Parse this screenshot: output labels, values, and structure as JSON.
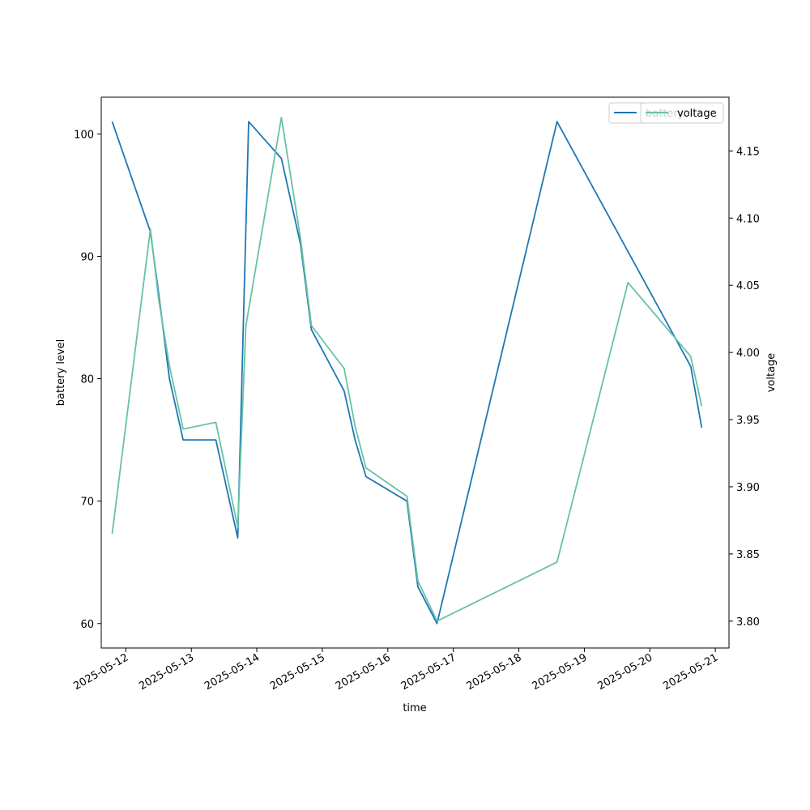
{
  "chart_data": {
    "type": "line",
    "title": "",
    "xlabel": "time",
    "ylabel": "battery level",
    "y2label": "voltage",
    "x_tick_labels": [
      "2025-05-12",
      "2025-05-13",
      "2025-05-14",
      "2025-05-15",
      "2025-05-16",
      "2025-05-17",
      "2025-05-18",
      "2025-05-19",
      "2025-05-20",
      "2025-05-21"
    ],
    "y_ticks": [
      60,
      70,
      80,
      90,
      100
    ],
    "y2_ticks": [
      "3.80",
      "3.85",
      "3.90",
      "3.95",
      "4.00",
      "4.05",
      "4.10",
      "4.15"
    ],
    "ylim": [
      58,
      103
    ],
    "y2lim": [
      3.78,
      4.19
    ],
    "xlim": [
      "2025-05-11 15:00",
      "2025-05-21 05:00"
    ],
    "grid": false,
    "legends": [
      {
        "placement": "top-right",
        "entries": [
          "battery"
        ]
      },
      {
        "placement": "top-right",
        "entries": [
          "voltage"
        ]
      }
    ],
    "series": [
      {
        "name": "battery",
        "axis": "left",
        "color": "#1f77b4",
        "points": [
          [
            "2025-05-11 19:00",
            101
          ],
          [
            "2025-05-12 09:00",
            92
          ],
          [
            "2025-05-12 12:00",
            87
          ],
          [
            "2025-05-12 16:00",
            80
          ],
          [
            "2025-05-12 21:00",
            75
          ],
          [
            "2025-05-13 09:00",
            75
          ],
          [
            "2025-05-13 17:00",
            67
          ],
          [
            "2025-05-13 21:00",
            101
          ],
          [
            "2025-05-14 09:00",
            98
          ],
          [
            "2025-05-14 16:00",
            91
          ],
          [
            "2025-05-14 20:00",
            84
          ],
          [
            "2025-05-15 08:00",
            79
          ],
          [
            "2025-05-15 12:00",
            75
          ],
          [
            "2025-05-15 16:00",
            72
          ],
          [
            "2025-05-16 07:00",
            70
          ],
          [
            "2025-05-16 11:00",
            63
          ],
          [
            "2025-05-16 18:00",
            60
          ],
          [
            "2025-05-18 14:00",
            101
          ],
          [
            "2025-05-20 15:00",
            81
          ],
          [
            "2025-05-20 19:00",
            76
          ]
        ]
      },
      {
        "name": "voltage",
        "axis": "right",
        "color": "#66c2a5",
        "points": [
          [
            "2025-05-11 19:00",
            3.865
          ],
          [
            "2025-05-12 09:00",
            4.092
          ],
          [
            "2025-05-12 12:00",
            4.04
          ],
          [
            "2025-05-12 16:00",
            3.99
          ],
          [
            "2025-05-12 21:00",
            3.943
          ],
          [
            "2025-05-13 09:00",
            3.948
          ],
          [
            "2025-05-13 17:00",
            3.87
          ],
          [
            "2025-05-13 20:00",
            4.02
          ],
          [
            "2025-05-14 09:00",
            4.175
          ],
          [
            "2025-05-14 16:00",
            4.085
          ],
          [
            "2025-05-14 20:00",
            4.02
          ],
          [
            "2025-05-15 08:00",
            3.988
          ],
          [
            "2025-05-15 12:00",
            3.945
          ],
          [
            "2025-05-15 16:00",
            3.914
          ],
          [
            "2025-05-16 07:00",
            3.893
          ],
          [
            "2025-05-16 11:00",
            3.83
          ],
          [
            "2025-05-16 18:00",
            3.8
          ],
          [
            "2025-05-18 14:00",
            3.844
          ],
          [
            "2025-05-19 16:00",
            4.052
          ],
          [
            "2025-05-20 15:00",
            3.997
          ],
          [
            "2025-05-20 19:00",
            3.96
          ]
        ]
      }
    ]
  }
}
